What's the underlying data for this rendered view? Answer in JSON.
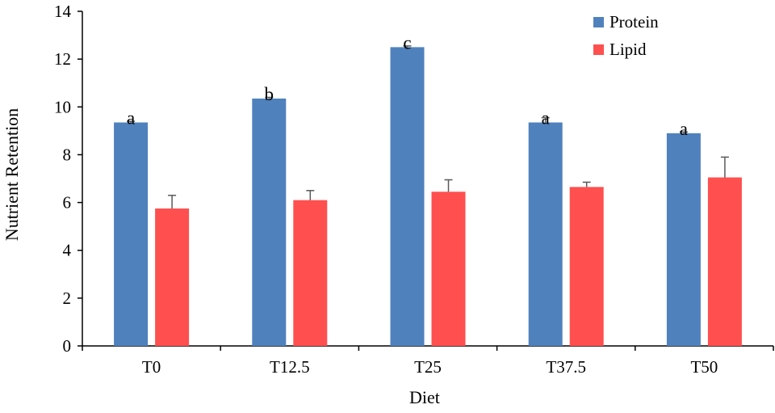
{
  "chart_data": {
    "type": "bar",
    "categories": [
      "T0",
      "T12.5",
      "T25",
      "T37.5",
      "T50"
    ],
    "series": [
      {
        "name": "Protein",
        "color": "#4f81bd",
        "values": [
          9.35,
          10.35,
          12.5,
          9.35,
          8.9
        ],
        "errors": [
          0.05,
          0.05,
          0.05,
          0.2,
          0.05
        ],
        "labels": [
          "a",
          "b",
          "c",
          "a",
          "a"
        ]
      },
      {
        "name": "Lipid",
        "color": "#ff4f4f",
        "values": [
          5.75,
          6.1,
          6.45,
          6.65,
          7.05
        ],
        "errors": [
          0.55,
          0.4,
          0.5,
          0.2,
          0.85
        ],
        "labels": [
          "",
          "",
          "",
          "",
          ""
        ]
      }
    ],
    "xlabel": "Diet",
    "ylabel": "Nutrient Retention",
    "ylim": [
      0,
      14
    ],
    "yticks": [
      0,
      2,
      4,
      6,
      8,
      10,
      12,
      14
    ],
    "grid": false,
    "legend": "top-right"
  }
}
